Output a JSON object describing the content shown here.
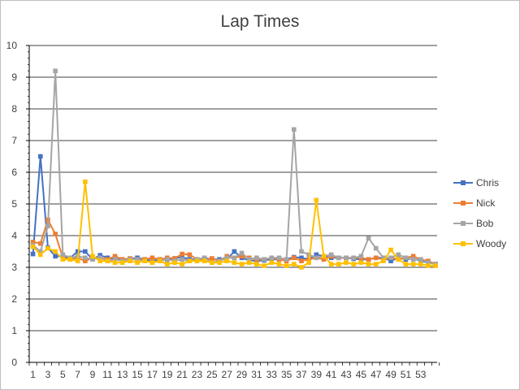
{
  "chart_data": {
    "type": "line",
    "title": "Lap Times",
    "xlabel": "",
    "ylabel": "",
    "ylim": [
      0,
      10
    ],
    "y_ticks": [
      0,
      1,
      2,
      3,
      4,
      5,
      6,
      7,
      8,
      9,
      10
    ],
    "x": [
      1,
      2,
      3,
      4,
      5,
      6,
      7,
      8,
      9,
      10,
      11,
      12,
      13,
      14,
      15,
      16,
      17,
      18,
      19,
      20,
      21,
      22,
      23,
      24,
      25,
      26,
      27,
      28,
      29,
      30,
      31,
      32,
      33,
      34,
      35,
      36,
      37,
      38,
      39,
      40,
      41,
      42,
      43,
      44,
      45,
      46,
      47,
      48,
      49,
      50,
      51,
      52,
      53,
      54,
      55
    ],
    "x_tick_labels": [
      "1",
      "3",
      "5",
      "7",
      "9",
      "11",
      "13",
      "15",
      "17",
      "19",
      "21",
      "23",
      "25",
      "27",
      "29",
      "31",
      "33",
      "35",
      "37",
      "39",
      "41",
      "43",
      "45",
      "47",
      "49",
      "51",
      "53"
    ],
    "grid": "horizontal",
    "legend_position": "right",
    "series": [
      {
        "name": "Chris",
        "color": "#4472C4",
        "values": [
          3.42,
          6.5,
          3.62,
          3.35,
          3.35,
          3.3,
          3.5,
          3.5,
          3.25,
          3.38,
          3.3,
          3.25,
          3.25,
          3.27,
          3.3,
          3.25,
          3.2,
          3.25,
          3.22,
          3.28,
          3.32,
          3.25,
          3.25,
          3.3,
          3.25,
          3.25,
          3.25,
          3.5,
          3.3,
          3.22,
          3.2,
          3.22,
          3.25,
          3.25,
          3.25,
          3.32,
          3.3,
          3.25,
          3.4,
          3.35,
          3.3,
          3.3,
          3.3,
          3.27,
          3.25,
          3.25,
          3.3,
          3.3,
          3.2,
          3.3,
          3.25,
          3.28,
          3.2,
          3.15,
          3.1
        ]
      },
      {
        "name": "Nick",
        "color": "#ED7D31",
        "values": [
          3.8,
          3.75,
          4.5,
          4.05,
          3.3,
          3.25,
          3.3,
          3.2,
          3.3,
          3.3,
          3.25,
          3.35,
          3.25,
          3.28,
          3.25,
          3.25,
          3.3,
          3.25,
          3.3,
          3.28,
          3.42,
          3.4,
          3.25,
          3.25,
          3.28,
          3.2,
          3.35,
          3.3,
          3.35,
          3.3,
          3.25,
          3.25,
          3.3,
          3.25,
          3.2,
          3.3,
          3.2,
          3.25,
          3.3,
          3.25,
          3.35,
          3.3,
          3.3,
          3.3,
          3.3,
          3.25,
          3.3,
          3.25,
          3.3,
          3.25,
          3.3,
          3.35,
          3.25,
          3.2,
          3.1
        ]
      },
      {
        "name": "Bob",
        "color": "#A5A5A5",
        "values": [
          3.7,
          3.5,
          4.3,
          9.2,
          3.4,
          3.3,
          3.35,
          3.3,
          3.25,
          3.3,
          3.2,
          3.25,
          3.2,
          3.25,
          3.25,
          3.2,
          3.15,
          3.2,
          3.25,
          3.2,
          3.25,
          3.2,
          3.25,
          3.3,
          3.15,
          3.2,
          3.3,
          3.3,
          3.45,
          3.25,
          3.3,
          3.25,
          3.3,
          3.3,
          3.25,
          7.35,
          3.5,
          3.4,
          3.3,
          3.35,
          3.4,
          3.3,
          3.3,
          3.3,
          3.35,
          3.92,
          3.6,
          3.3,
          3.3,
          3.4,
          3.3,
          3.25,
          3.25,
          3.15,
          3.1
        ]
      },
      {
        "name": "Woody",
        "color": "#FFC000",
        "values": [
          3.65,
          3.4,
          3.6,
          3.5,
          3.25,
          3.25,
          3.2,
          5.7,
          3.35,
          3.2,
          3.2,
          3.15,
          3.15,
          3.2,
          3.15,
          3.2,
          3.15,
          3.2,
          3.1,
          3.15,
          3.1,
          3.2,
          3.2,
          3.2,
          3.15,
          3.15,
          3.2,
          3.15,
          3.1,
          3.15,
          3.1,
          3.05,
          3.15,
          3.1,
          3.05,
          3.1,
          3.0,
          3.15,
          5.12,
          3.35,
          3.1,
          3.1,
          3.15,
          3.1,
          3.15,
          3.1,
          3.1,
          3.2,
          3.55,
          3.25,
          3.1,
          3.1,
          3.1,
          3.05,
          3.05
        ]
      }
    ]
  }
}
